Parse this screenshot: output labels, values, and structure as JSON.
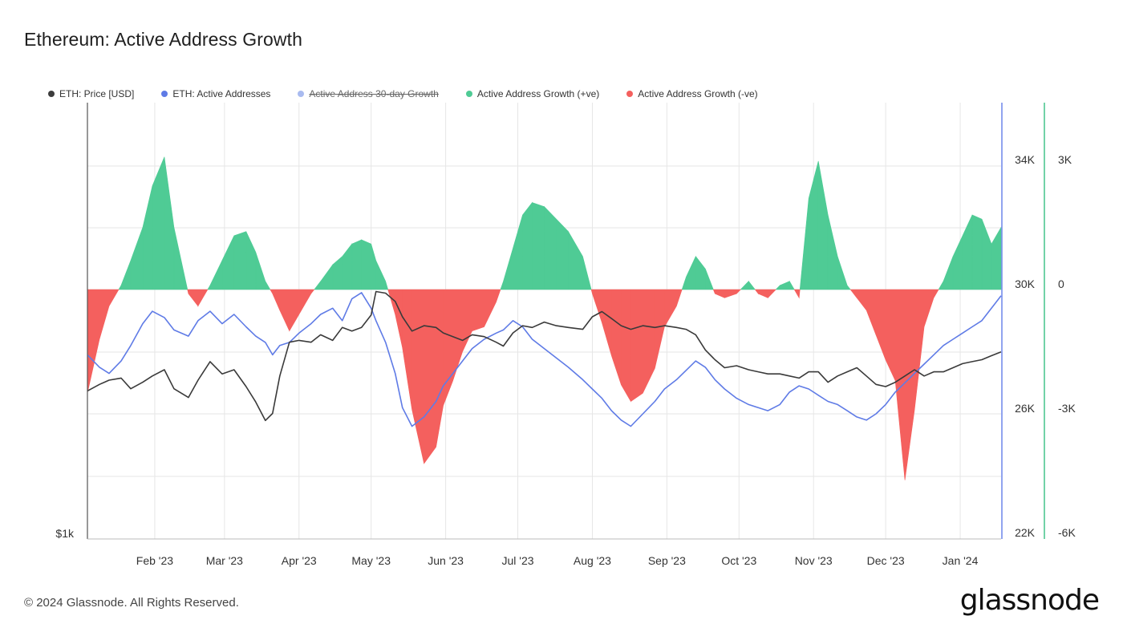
{
  "title": "Ethereum: Active Address Growth",
  "footer": "© 2024 Glassnode. All Rights Reserved.",
  "logo": "glassnode",
  "colors": {
    "price": "#3a3a3a",
    "active": "#5f7be6",
    "growth30": "#9fb4ee",
    "positive": "#4fcb95",
    "negative": "#f4605e",
    "grid": "#e6e6e6",
    "axis_blue": "#6d86ea",
    "axis_green": "#43c48a"
  },
  "legend": [
    {
      "label": "ETH: Price [USD]",
      "color": "#3d3d3d",
      "disabled": false
    },
    {
      "label": "ETH: Active Addresses",
      "color": "#5f7be6",
      "disabled": false
    },
    {
      "label": "Active Address 30-day Growth",
      "color": "#a9bbf0",
      "disabled": true
    },
    {
      "label": "Active Address Growth (+ve)",
      "color": "#4fcb95",
      "disabled": false
    },
    {
      "label": "Active Address Growth (-ve)",
      "color": "#f4605e",
      "disabled": false
    }
  ],
  "chart_data": {
    "type": "line",
    "title": "Ethereum: Active Address Growth",
    "x_ticks": [
      "Feb '23",
      "Mar '23",
      "Apr '23",
      "May '23",
      "Jun '23",
      "Jul '23",
      "Aug '23",
      "Sep '23",
      "Oct '23",
      "Nov '23",
      "Dec '23",
      "Jan '24"
    ],
    "x_range_days": [
      0,
      380
    ],
    "y_left": {
      "label": "$1k",
      "scale": "log"
    },
    "y_right_addresses": {
      "ticks": [
        "34K",
        "30K",
        "26K",
        "22K"
      ],
      "range": [
        22000,
        36000
      ]
    },
    "y_right_growth": {
      "ticks": [
        "3K",
        "0",
        "-3K",
        "-6K"
      ],
      "range": [
        -6000,
        4000
      ]
    },
    "series": [
      {
        "name": "ETH: Price [USD]",
        "axis": "price",
        "points": [
          [
            0,
            1550
          ],
          [
            5,
            1580
          ],
          [
            9,
            1600
          ],
          [
            14,
            1610
          ],
          [
            18,
            1560
          ],
          [
            23,
            1590
          ],
          [
            27,
            1620
          ],
          [
            32,
            1650
          ],
          [
            36,
            1560
          ],
          [
            42,
            1520
          ],
          [
            46,
            1600
          ],
          [
            51,
            1690
          ],
          [
            56,
            1630
          ],
          [
            61,
            1650
          ],
          [
            66,
            1570
          ],
          [
            70,
            1500
          ],
          [
            74,
            1420
          ],
          [
            77,
            1450
          ],
          [
            80,
            1620
          ],
          [
            84,
            1790
          ],
          [
            88,
            1800
          ],
          [
            93,
            1790
          ],
          [
            97,
            1830
          ],
          [
            102,
            1800
          ],
          [
            106,
            1870
          ],
          [
            110,
            1850
          ],
          [
            114,
            1870
          ],
          [
            118,
            1940
          ],
          [
            120,
            2080
          ],
          [
            124,
            2070
          ],
          [
            128,
            2020
          ],
          [
            131,
            1930
          ],
          [
            135,
            1850
          ],
          [
            140,
            1880
          ],
          [
            145,
            1870
          ],
          [
            148,
            1840
          ],
          [
            152,
            1820
          ],
          [
            156,
            1800
          ],
          [
            160,
            1830
          ],
          [
            165,
            1820
          ],
          [
            170,
            1790
          ],
          [
            173,
            1770
          ],
          [
            177,
            1840
          ],
          [
            181,
            1880
          ],
          [
            185,
            1870
          ],
          [
            190,
            1900
          ],
          [
            195,
            1880
          ],
          [
            200,
            1870
          ],
          [
            206,
            1860
          ],
          [
            210,
            1930
          ],
          [
            214,
            1960
          ],
          [
            218,
            1920
          ],
          [
            222,
            1880
          ],
          [
            226,
            1860
          ],
          [
            231,
            1880
          ],
          [
            236,
            1870
          ],
          [
            240,
            1880
          ],
          [
            245,
            1870
          ],
          [
            249,
            1860
          ],
          [
            253,
            1830
          ],
          [
            257,
            1750
          ],
          [
            261,
            1700
          ],
          [
            265,
            1660
          ],
          [
            270,
            1670
          ],
          [
            275,
            1650
          ],
          [
            279,
            1640
          ],
          [
            283,
            1630
          ],
          [
            288,
            1630
          ],
          [
            292,
            1620
          ],
          [
            296,
            1610
          ],
          [
            300,
            1640
          ],
          [
            304,
            1640
          ],
          [
            308,
            1590
          ],
          [
            312,
            1620
          ],
          [
            316,
            1640
          ],
          [
            320,
            1660
          ],
          [
            324,
            1620
          ],
          [
            328,
            1580
          ],
          [
            332,
            1570
          ],
          [
            336,
            1590
          ],
          [
            340,
            1620
          ],
          [
            344,
            1650
          ],
          [
            348,
            1620
          ],
          [
            352,
            1640
          ],
          [
            356,
            1640
          ],
          [
            360,
            1660
          ],
          [
            364,
            1680
          ],
          [
            368,
            1690
          ],
          [
            372,
            1700
          ],
          [
            376,
            1720
          ],
          [
            380,
            1740
          ]
        ]
      },
      {
        "name": "ETH: Active Addresses",
        "axis": "addresses",
        "points": [
          [
            0,
            27900
          ],
          [
            5,
            27500
          ],
          [
            9,
            27300
          ],
          [
            14,
            27700
          ],
          [
            18,
            28200
          ],
          [
            23,
            28900
          ],
          [
            27,
            29300
          ],
          [
            32,
            29100
          ],
          [
            36,
            28700
          ],
          [
            42,
            28500
          ],
          [
            46,
            29000
          ],
          [
            51,
            29300
          ],
          [
            56,
            28900
          ],
          [
            61,
            29200
          ],
          [
            66,
            28800
          ],
          [
            70,
            28500
          ],
          [
            74,
            28300
          ],
          [
            77,
            27900
          ],
          [
            80,
            28200
          ],
          [
            84,
            28300
          ],
          [
            88,
            28600
          ],
          [
            93,
            28900
          ],
          [
            97,
            29200
          ],
          [
            102,
            29400
          ],
          [
            106,
            29000
          ],
          [
            110,
            29700
          ],
          [
            114,
            29900
          ],
          [
            118,
            29400
          ],
          [
            120,
            29000
          ],
          [
            124,
            28300
          ],
          [
            128,
            27300
          ],
          [
            131,
            26200
          ],
          [
            135,
            25600
          ],
          [
            140,
            25900
          ],
          [
            145,
            26400
          ],
          [
            148,
            26900
          ],
          [
            152,
            27300
          ],
          [
            156,
            27700
          ],
          [
            160,
            28100
          ],
          [
            165,
            28400
          ],
          [
            170,
            28600
          ],
          [
            173,
            28700
          ],
          [
            177,
            29000
          ],
          [
            181,
            28800
          ],
          [
            185,
            28400
          ],
          [
            190,
            28100
          ],
          [
            195,
            27800
          ],
          [
            200,
            27500
          ],
          [
            206,
            27100
          ],
          [
            210,
            26800
          ],
          [
            214,
            26500
          ],
          [
            218,
            26100
          ],
          [
            222,
            25800
          ],
          [
            226,
            25600
          ],
          [
            231,
            26000
          ],
          [
            236,
            26400
          ],
          [
            240,
            26800
          ],
          [
            245,
            27100
          ],
          [
            249,
            27400
          ],
          [
            253,
            27700
          ],
          [
            257,
            27500
          ],
          [
            261,
            27100
          ],
          [
            265,
            26800
          ],
          [
            270,
            26500
          ],
          [
            275,
            26300
          ],
          [
            279,
            26200
          ],
          [
            283,
            26100
          ],
          [
            288,
            26300
          ],
          [
            292,
            26700
          ],
          [
            296,
            26900
          ],
          [
            300,
            26800
          ],
          [
            304,
            26600
          ],
          [
            308,
            26400
          ],
          [
            312,
            26300
          ],
          [
            316,
            26100
          ],
          [
            320,
            25900
          ],
          [
            324,
            25800
          ],
          [
            328,
            26000
          ],
          [
            332,
            26300
          ],
          [
            336,
            26700
          ],
          [
            340,
            27000
          ],
          [
            344,
            27300
          ],
          [
            348,
            27600
          ],
          [
            352,
            27900
          ],
          [
            356,
            28200
          ],
          [
            360,
            28400
          ],
          [
            364,
            28600
          ],
          [
            368,
            28800
          ],
          [
            372,
            29000
          ],
          [
            376,
            29400
          ],
          [
            380,
            29800
          ]
        ]
      },
      {
        "name": "Active Address Growth",
        "axis": "growth",
        "points": [
          [
            0,
            -2500
          ],
          [
            5,
            -1200
          ],
          [
            9,
            -400
          ],
          [
            14,
            100
          ],
          [
            18,
            700
          ],
          [
            23,
            1500
          ],
          [
            27,
            2500
          ],
          [
            32,
            3200
          ],
          [
            36,
            1500
          ],
          [
            42,
            -100
          ],
          [
            46,
            -400
          ],
          [
            51,
            100
          ],
          [
            56,
            700
          ],
          [
            61,
            1300
          ],
          [
            66,
            1400
          ],
          [
            70,
            900
          ],
          [
            74,
            200
          ],
          [
            77,
            -100
          ],
          [
            80,
            -500
          ],
          [
            84,
            -1000
          ],
          [
            88,
            -600
          ],
          [
            93,
            -100
          ],
          [
            97,
            200
          ],
          [
            102,
            600
          ],
          [
            106,
            800
          ],
          [
            110,
            1100
          ],
          [
            114,
            1200
          ],
          [
            118,
            1100
          ],
          [
            120,
            700
          ],
          [
            124,
            200
          ],
          [
            128,
            -600
          ],
          [
            131,
            -1400
          ],
          [
            135,
            -2900
          ],
          [
            140,
            -4200
          ],
          [
            145,
            -3800
          ],
          [
            148,
            -2800
          ],
          [
            152,
            -2200
          ],
          [
            156,
            -1500
          ],
          [
            160,
            -1000
          ],
          [
            165,
            -900
          ],
          [
            170,
            -300
          ],
          [
            173,
            200
          ],
          [
            177,
            1000
          ],
          [
            181,
            1800
          ],
          [
            185,
            2100
          ],
          [
            190,
            2000
          ],
          [
            195,
            1700
          ],
          [
            200,
            1400
          ],
          [
            206,
            800
          ],
          [
            210,
            -100
          ],
          [
            214,
            -800
          ],
          [
            218,
            -1600
          ],
          [
            222,
            -2300
          ],
          [
            226,
            -2700
          ],
          [
            231,
            -2500
          ],
          [
            236,
            -1900
          ],
          [
            240,
            -900
          ],
          [
            245,
            -400
          ],
          [
            249,
            300
          ],
          [
            253,
            800
          ],
          [
            257,
            500
          ],
          [
            261,
            -100
          ],
          [
            265,
            -200
          ],
          [
            270,
            -100
          ],
          [
            275,
            200
          ],
          [
            279,
            -100
          ],
          [
            283,
            -200
          ],
          [
            288,
            100
          ],
          [
            292,
            200
          ],
          [
            296,
            -200
          ],
          [
            300,
            2200
          ],
          [
            304,
            3100
          ],
          [
            308,
            1800
          ],
          [
            312,
            800
          ],
          [
            316,
            100
          ],
          [
            320,
            -200
          ],
          [
            324,
            -500
          ],
          [
            328,
            -1100
          ],
          [
            332,
            -1700
          ],
          [
            336,
            -2200
          ],
          [
            340,
            -4600
          ],
          [
            344,
            -2900
          ],
          [
            348,
            -900
          ],
          [
            352,
            -200
          ],
          [
            356,
            200
          ],
          [
            360,
            800
          ],
          [
            364,
            1300
          ],
          [
            368,
            1800
          ],
          [
            372,
            1700
          ],
          [
            376,
            1100
          ],
          [
            380,
            1500
          ]
        ]
      }
    ]
  }
}
